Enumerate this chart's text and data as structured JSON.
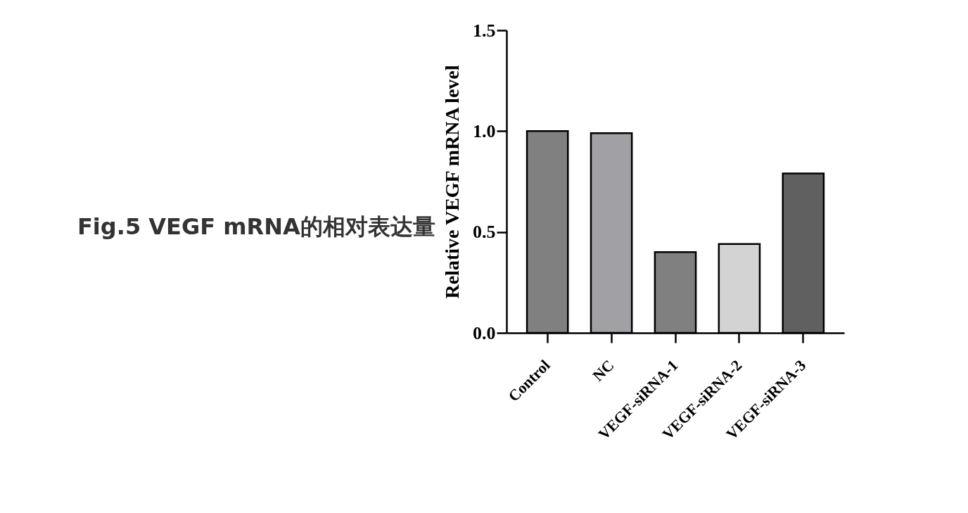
{
  "chart_data": {
    "type": "bar",
    "title": "Fig.5 VEGF mRNA的相对表达量",
    "ylabel": "Relative VEGF mRNA level",
    "categories": [
      "Control",
      "NC",
      "VEGF-siRNA-1",
      "VEGF-siRNA-2",
      "VEGF-siRNA-3"
    ],
    "values": [
      1.0,
      0.99,
      0.4,
      0.44,
      0.79
    ],
    "colors": [
      "#808080",
      "#a0a0a5",
      "#808080",
      "#d3d3d3",
      "#606060"
    ],
    "ylim": [
      0,
      1.5
    ],
    "yticks": [
      {
        "value": 0,
        "label": "0.0"
      },
      0.5,
      {
        "value": 1,
        "label": "1.0"
      },
      1.5
    ],
    "grid": false
  }
}
